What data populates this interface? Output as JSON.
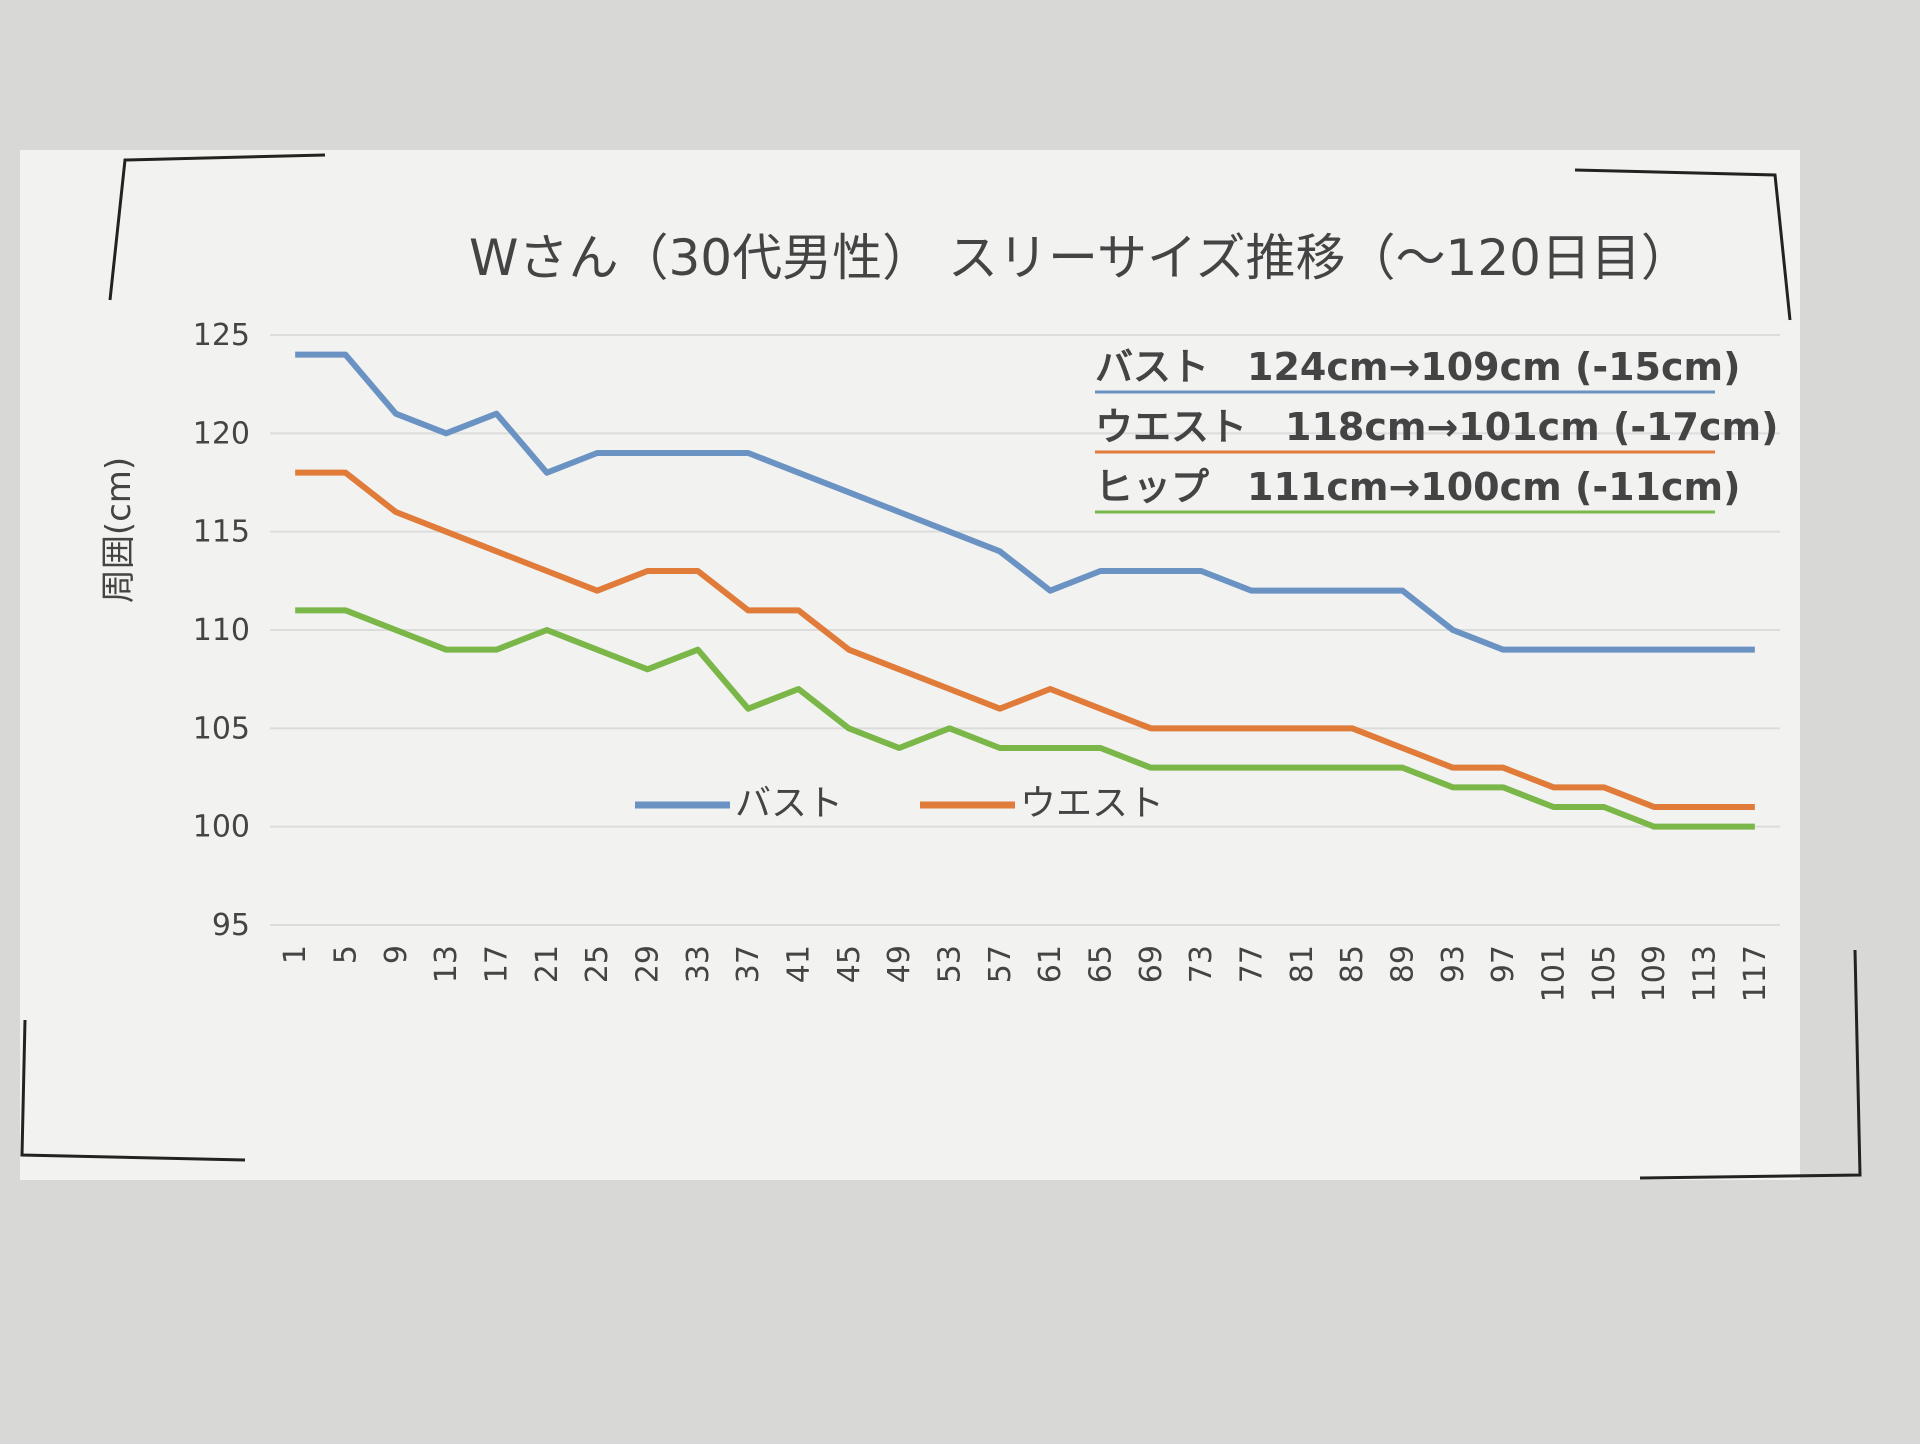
{
  "chart_data": {
    "type": "line",
    "title": "Wさん（30代男性） スリーサイズ推移（～120日目）",
    "y_label": "周囲(cm)",
    "categories": [
      "1",
      "5",
      "9",
      "13",
      "17",
      "21",
      "25",
      "29",
      "33",
      "37",
      "41",
      "45",
      "49",
      "53",
      "57",
      "61",
      "65",
      "69",
      "73",
      "77",
      "81",
      "85",
      "89",
      "93",
      "97",
      "101",
      "105",
      "109",
      "113",
      "117"
    ],
    "series": [
      {
        "name": "バスト",
        "color": "#6a93c4",
        "in_legend": true,
        "values": [
          124,
          124,
          121,
          120,
          121,
          118,
          119,
          119,
          119,
          119,
          118,
          117,
          116,
          115,
          114,
          112,
          113,
          113,
          113,
          112,
          112,
          112,
          112,
          110,
          109,
          109,
          109,
          109,
          109,
          109
        ]
      },
      {
        "name": "ウエスト",
        "color": "#e07b39",
        "in_legend": true,
        "values": [
          118,
          118,
          116,
          115,
          114,
          113,
          112,
          113,
          113,
          111,
          111,
          109,
          108,
          107,
          106,
          107,
          106,
          105,
          105,
          105,
          105,
          105,
          104,
          103,
          103,
          102,
          102,
          101,
          101,
          101
        ]
      },
      {
        "name": "ヒップ",
        "color": "#7ab648",
        "in_legend": false,
        "values": [
          111,
          111,
          110,
          109,
          109,
          110,
          109,
          108,
          109,
          106,
          107,
          105,
          104,
          105,
          104,
          104,
          104,
          103,
          103,
          103,
          103,
          103,
          103,
          102,
          102,
          101,
          101,
          100,
          100,
          100
        ]
      }
    ],
    "ylim": [
      95,
      125
    ],
    "yticks": [
      95,
      100,
      105,
      110,
      115,
      120,
      125
    ],
    "grid": true,
    "annotations": [
      {
        "text": "バスト　124cm→109cm (-15cm)",
        "color": "#6a93c4"
      },
      {
        "text": "ウエスト　118cm→101cm (-17cm)",
        "color": "#e07b39"
      },
      {
        "text": "ヒップ　111cm→100cm (-11cm)",
        "color": "#7ab648"
      }
    ]
  }
}
